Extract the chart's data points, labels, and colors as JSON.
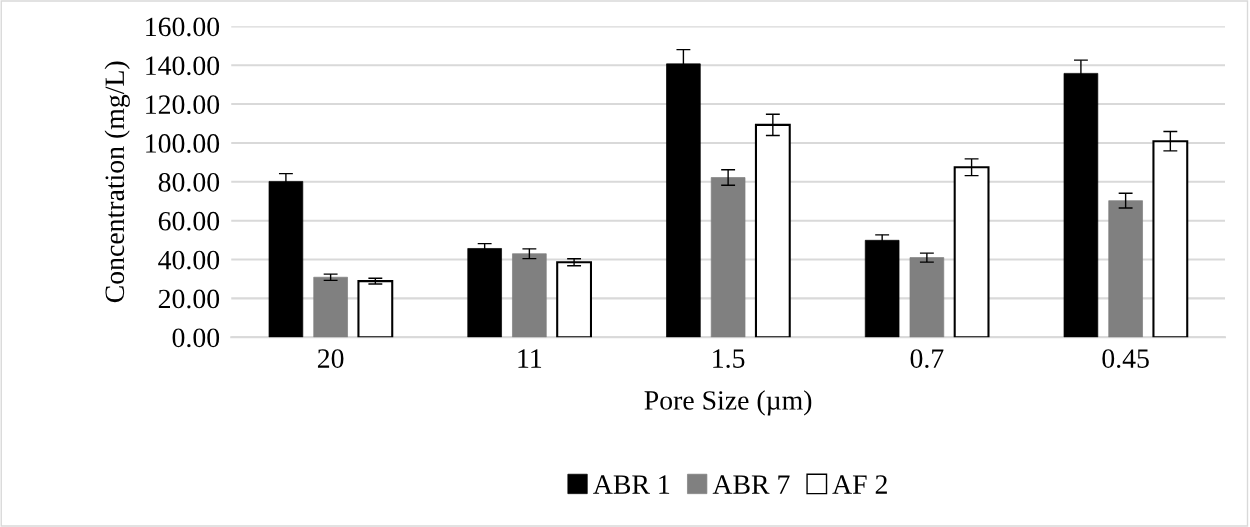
{
  "chart_data": {
    "type": "bar",
    "xlabel": "Pore Size (µm)",
    "ylabel": "Concentration (mg/L)",
    "categories": [
      "20",
      "11",
      "1.5",
      "0.7",
      "0.45"
    ],
    "series": [
      {
        "name": "ABR 1",
        "color": "#000000",
        "values": [
          80.2,
          45.7,
          140.7,
          49.9,
          135.8
        ],
        "errors": [
          4.0,
          2.5,
          7.3,
          2.8,
          6.8
        ]
      },
      {
        "name": "ABR 7",
        "color": "#808080",
        "values": [
          30.9,
          43.0,
          82.2,
          41.0,
          70.3
        ],
        "errors": [
          1.6,
          2.5,
          4.0,
          2.3,
          3.8
        ]
      },
      {
        "name": "AF 2",
        "color": "#ffffff",
        "values": [
          28.9,
          38.6,
          109.3,
          87.5,
          100.9
        ],
        "errors": [
          1.5,
          1.8,
          5.5,
          4.3,
          5.0
        ]
      }
    ],
    "ylim": [
      0,
      160
    ],
    "yticks": [
      {
        "value": 0,
        "label": "0.00"
      },
      {
        "value": 20,
        "label": "20.00"
      },
      {
        "value": 40,
        "label": "40.00"
      },
      {
        "value": 60,
        "label": "60.00"
      },
      {
        "value": 80,
        "label": "80.00"
      },
      {
        "value": 100,
        "label": "100.00"
      },
      {
        "value": 120,
        "label": "120.00"
      },
      {
        "value": 140,
        "label": "140.00"
      },
      {
        "value": 160,
        "label": "160.00"
      }
    ],
    "grid": "y",
    "legend": "bottom"
  }
}
